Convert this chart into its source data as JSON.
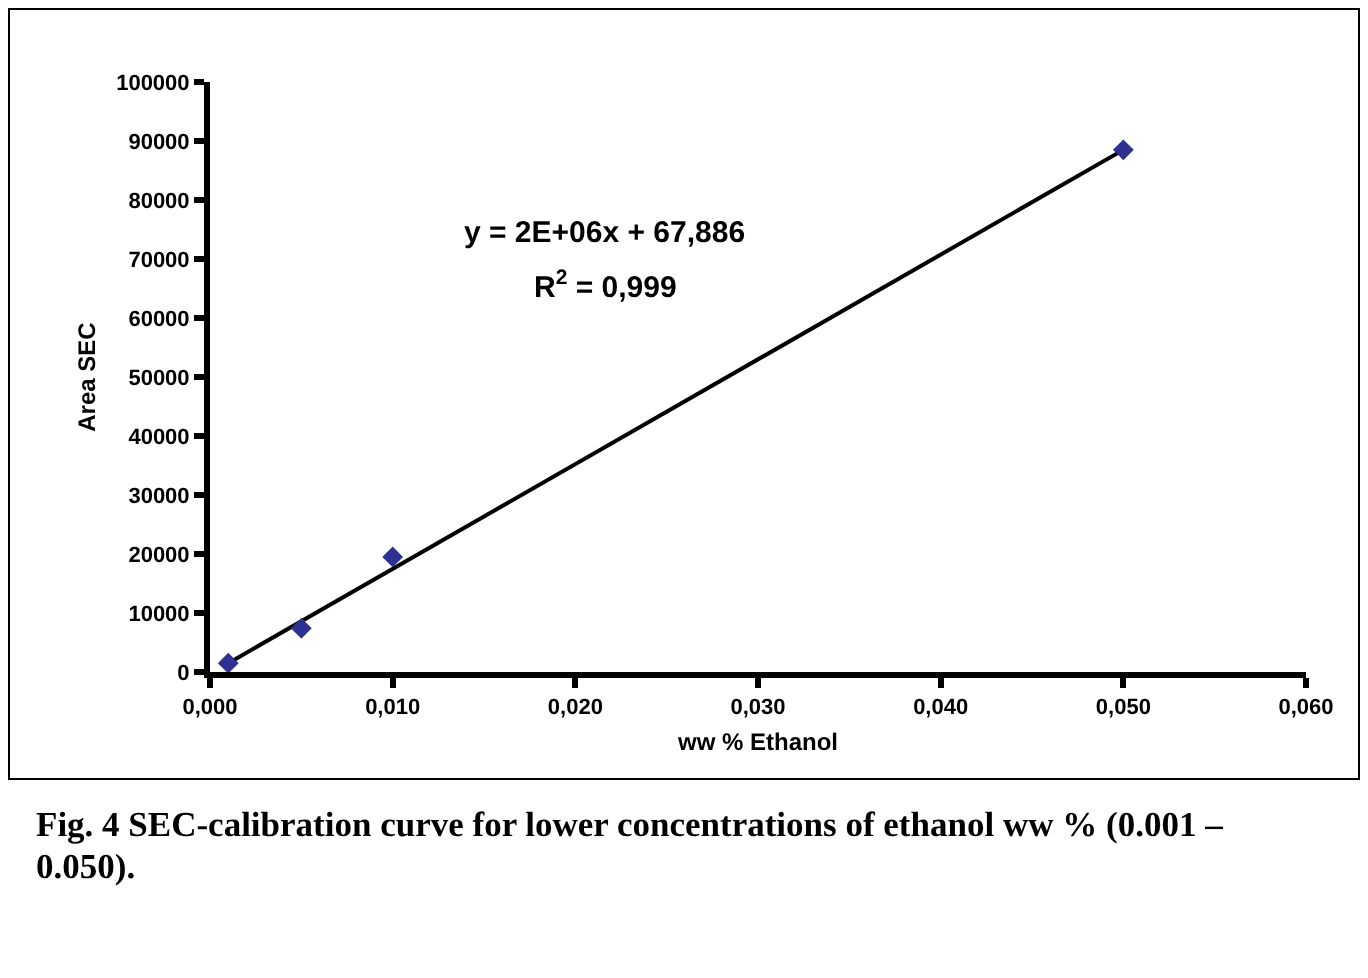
{
  "chart_data": {
    "type": "scatter",
    "xlabel": "ww % Ethanol",
    "ylabel": "Area SEC",
    "x": [
      0.001,
      0.005,
      0.01,
      0.05
    ],
    "series": [
      {
        "color": "#2e3192",
        "values": [
          1500,
          7400,
          19500,
          88500
        ]
      },
      {
        "type": "line",
        "color": "#000000",
        "x": [
          0.001,
          0.05
        ],
        "values": [
          1500,
          88500
        ],
        "marker": "none",
        "line_style": "solid"
      }
    ],
    "marker": "diamond",
    "xlim": [
      0,
      0.06
    ],
    "xticks": [
      {
        "value": 0,
        "label": "0,000"
      },
      {
        "value": 0.01,
        "label": "0,010"
      },
      {
        "value": 0.02,
        "label": "0,020"
      },
      {
        "value": 0.03,
        "label": "0,030"
      },
      {
        "value": 0.04,
        "label": "0,040"
      },
      {
        "value": 0.05,
        "label": "0,050"
      },
      {
        "value": 0.06,
        "label": "0,060"
      }
    ],
    "ylim": [
      0,
      100000
    ],
    "yticks": [
      0,
      10000,
      20000,
      30000,
      40000,
      50000,
      60000,
      70000,
      80000,
      90000,
      100000
    ],
    "grid": false,
    "annotations": [
      "y = 2E+06x + 67,886",
      "R$^{2}$ = 0,999",
      "Fig. 4 SEC-calibration curve for lower concentrations of ethanol ww % (0.001 – 0.050)."
    ]
  }
}
